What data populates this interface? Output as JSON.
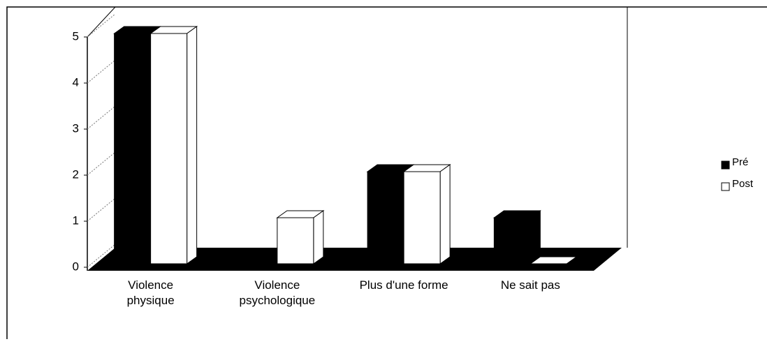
{
  "chart_data": {
    "type": "bar3d",
    "categories": [
      "Violence physique",
      "Violence psychologique",
      "Plus d'une forme",
      "Ne sait pas"
    ],
    "series": [
      {
        "name": "Pré",
        "color": "#000000",
        "values": [
          5,
          0,
          2,
          1
        ]
      },
      {
        "name": "Post",
        "color": "#ffffff",
        "values": [
          5,
          1,
          2,
          0
        ]
      }
    ],
    "ylim": [
      0,
      5
    ],
    "yticks": [
      0,
      1,
      2,
      3,
      4,
      5
    ],
    "grid": true,
    "legend": "right"
  }
}
